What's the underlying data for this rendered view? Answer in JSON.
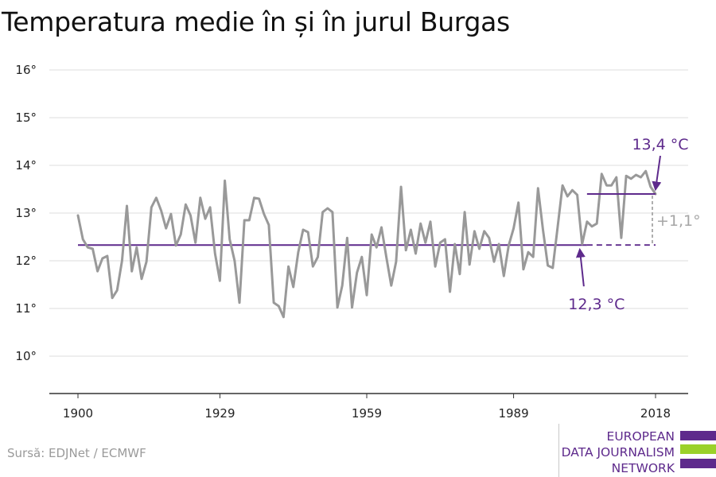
{
  "title": "Temperatura medie în și în jurul Burgas",
  "source": "Sursă: EDJNet / ECMWF",
  "logo": {
    "lines": [
      "EUROPEAN",
      "DATA JOURNALISM",
      "NETWORK"
    ],
    "colors": [
      "#5e2a8c",
      "#9bd12a",
      "#5e2a8c"
    ]
  },
  "colors": {
    "series": "#999999",
    "accent": "#5e2a8c",
    "grid": "#dcdcdc",
    "axis": "#333333",
    "diff": "#a6a6a6"
  },
  "chart_data": {
    "type": "line",
    "x": [
      1900,
      1901,
      1902,
      1903,
      1904,
      1905,
      1906,
      1907,
      1908,
      1909,
      1910,
      1911,
      1912,
      1913,
      1914,
      1915,
      1916,
      1917,
      1918,
      1919,
      1920,
      1921,
      1922,
      1923,
      1924,
      1925,
      1926,
      1927,
      1928,
      1929,
      1930,
      1931,
      1932,
      1933,
      1934,
      1935,
      1936,
      1937,
      1938,
      1939,
      1940,
      1941,
      1942,
      1943,
      1944,
      1945,
      1946,
      1947,
      1948,
      1949,
      1950,
      1951,
      1952,
      1953,
      1954,
      1955,
      1956,
      1957,
      1958,
      1959,
      1960,
      1961,
      1962,
      1963,
      1964,
      1965,
      1966,
      1967,
      1968,
      1969,
      1970,
      1971,
      1972,
      1973,
      1974,
      1975,
      1976,
      1977,
      1978,
      1979,
      1980,
      1981,
      1982,
      1983,
      1984,
      1985,
      1986,
      1987,
      1988,
      1989,
      1990,
      1991,
      1992,
      1993,
      1994,
      1995,
      1996,
      1997,
      1998,
      1999,
      2000,
      2001,
      2002,
      2003,
      2004,
      2005,
      2006,
      2007,
      2008,
      2009,
      2010,
      2011,
      2012,
      2013,
      2014,
      2015,
      2016,
      2017,
      2018
    ],
    "series": [
      {
        "values": [
          12.95,
          12.45,
          12.28,
          12.25,
          11.78,
          12.05,
          12.1,
          11.22,
          11.38,
          12.0,
          13.15,
          11.78,
          12.28,
          11.62,
          11.98,
          13.12,
          13.32,
          13.05,
          12.68,
          12.98,
          12.32,
          12.55,
          13.18,
          12.95,
          12.38,
          13.32,
          12.88,
          13.12,
          12.15,
          11.58,
          13.68,
          12.45,
          12.0,
          11.12,
          12.85,
          12.85,
          13.32,
          13.3,
          12.98,
          12.75,
          11.12,
          11.05,
          10.82,
          11.88,
          11.45,
          12.18,
          12.65,
          12.6,
          11.88,
          12.08,
          13.02,
          13.1,
          13.02,
          11.02,
          11.48,
          12.48,
          11.02,
          11.75,
          12.08,
          11.28,
          12.55,
          12.28,
          12.7,
          12.08,
          11.48,
          11.98,
          13.55,
          12.22,
          12.65,
          12.15,
          12.78,
          12.38,
          12.82,
          11.88,
          12.38,
          12.45,
          11.35,
          12.35,
          11.72,
          13.02,
          11.92,
          12.62,
          12.25,
          12.62,
          12.48,
          11.98,
          12.35,
          11.68,
          12.32,
          12.68,
          13.22,
          11.82,
          12.18,
          12.08,
          13.52,
          12.65,
          11.9,
          11.85,
          12.7,
          13.58,
          13.35,
          13.48,
          13.38,
          12.35,
          12.82,
          12.72,
          12.78,
          13.82,
          13.58,
          13.58,
          13.75,
          12.48,
          13.78,
          13.72,
          13.8,
          13.75,
          13.88,
          13.55,
          13.4
        ]
      }
    ],
    "xlim": [
      1900,
      2018
    ],
    "ylim": [
      9.2,
      16.3
    ],
    "xticks": [
      1900,
      1929,
      1959,
      1989,
      2018
    ],
    "xtick_labels": [
      "1900",
      "1929",
      "1959",
      "1989",
      "2018"
    ],
    "yticks": [
      10,
      11,
      12,
      13,
      14,
      15,
      16
    ],
    "ytick_labels": [
      "10°",
      "11°",
      "12°",
      "13°",
      "14°",
      "15°",
      "16°"
    ],
    "grid": true,
    "baseline": {
      "value": 12.33,
      "from": 1900,
      "to": 2004,
      "dashed_to": 2018,
      "label": "12,3 °C",
      "arrow_at": 2004
    },
    "recent": {
      "value": 13.4,
      "from": 2004,
      "to": 2018,
      "label": "13,4 °C"
    },
    "difference_label": "+1,1°"
  }
}
